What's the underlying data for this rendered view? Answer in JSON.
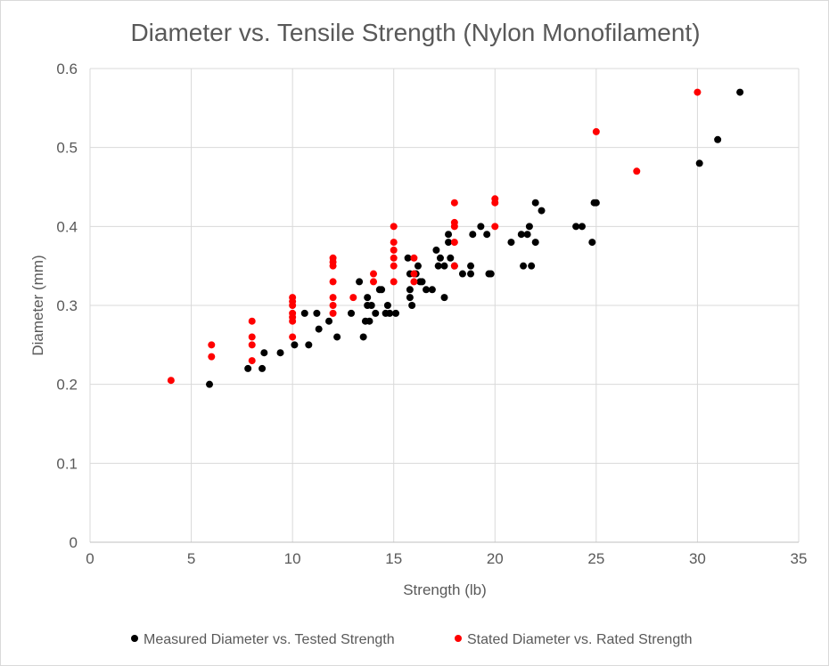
{
  "chart_data": {
    "type": "scatter",
    "title": "Diameter vs. Tensile Strength (Nylon Monofilament)",
    "xlabel": "Strength (lb)",
    "ylabel": "Diameter (mm)",
    "xlim": [
      0,
      35
    ],
    "ylim": [
      0,
      0.6
    ],
    "x_ticks": [
      "0",
      "5",
      "10",
      "15",
      "20",
      "25",
      "30",
      "35"
    ],
    "y_ticks": [
      "0",
      "0.1",
      "0.2",
      "0.3",
      "0.4",
      "0.5",
      "0.6"
    ],
    "grid": true,
    "legend_position": "bottom",
    "series": [
      {
        "name": "Measured Diameter vs. Tested Strength",
        "color": "#000000",
        "points": [
          [
            5.9,
            0.2
          ],
          [
            7.8,
            0.22
          ],
          [
            8.5,
            0.22
          ],
          [
            8.6,
            0.24
          ],
          [
            9.4,
            0.24
          ],
          [
            10.1,
            0.25
          ],
          [
            10.6,
            0.29
          ],
          [
            10.8,
            0.25
          ],
          [
            11.2,
            0.29
          ],
          [
            11.3,
            0.27
          ],
          [
            11.8,
            0.28
          ],
          [
            12.2,
            0.26
          ],
          [
            12.9,
            0.29
          ],
          [
            13.3,
            0.33
          ],
          [
            13.5,
            0.26
          ],
          [
            13.6,
            0.28
          ],
          [
            13.7,
            0.3
          ],
          [
            13.7,
            0.31
          ],
          [
            13.8,
            0.28
          ],
          [
            13.9,
            0.3
          ],
          [
            14.1,
            0.29
          ],
          [
            14.3,
            0.32
          ],
          [
            14.4,
            0.32
          ],
          [
            14.6,
            0.29
          ],
          [
            14.7,
            0.3
          ],
          [
            14.8,
            0.29
          ],
          [
            15.1,
            0.29
          ],
          [
            15.7,
            0.36
          ],
          [
            15.8,
            0.31
          ],
          [
            15.8,
            0.32
          ],
          [
            15.8,
            0.34
          ],
          [
            15.9,
            0.3
          ],
          [
            16.1,
            0.34
          ],
          [
            16.2,
            0.35
          ],
          [
            16.3,
            0.33
          ],
          [
            16.4,
            0.33
          ],
          [
            16.6,
            0.32
          ],
          [
            16.9,
            0.32
          ],
          [
            17.1,
            0.37
          ],
          [
            17.2,
            0.35
          ],
          [
            17.3,
            0.36
          ],
          [
            17.5,
            0.35
          ],
          [
            17.5,
            0.31
          ],
          [
            17.7,
            0.39
          ],
          [
            17.7,
            0.38
          ],
          [
            17.8,
            0.36
          ],
          [
            18.0,
            0.35
          ],
          [
            18.4,
            0.34
          ],
          [
            18.8,
            0.35
          ],
          [
            18.8,
            0.34
          ],
          [
            18.9,
            0.39
          ],
          [
            19.3,
            0.4
          ],
          [
            19.6,
            0.39
          ],
          [
            19.7,
            0.34
          ],
          [
            19.8,
            0.34
          ],
          [
            20.8,
            0.38
          ],
          [
            21.3,
            0.39
          ],
          [
            21.4,
            0.35
          ],
          [
            21.6,
            0.39
          ],
          [
            21.7,
            0.4
          ],
          [
            21.8,
            0.35
          ],
          [
            22.0,
            0.38
          ],
          [
            22.0,
            0.43
          ],
          [
            22.3,
            0.42
          ],
          [
            24.0,
            0.4
          ],
          [
            24.3,
            0.4
          ],
          [
            24.8,
            0.38
          ],
          [
            24.9,
            0.43
          ],
          [
            25.0,
            0.43
          ],
          [
            30.1,
            0.48
          ],
          [
            31.0,
            0.51
          ],
          [
            32.1,
            0.57
          ]
        ]
      },
      {
        "name": "Stated Diameter vs. Rated Strength",
        "color": "#ff0000",
        "points": [
          [
            4,
            0.205
          ],
          [
            6,
            0.235
          ],
          [
            6,
            0.25
          ],
          [
            8,
            0.23
          ],
          [
            8,
            0.25
          ],
          [
            8,
            0.26
          ],
          [
            8,
            0.28
          ],
          [
            10,
            0.26
          ],
          [
            10,
            0.28
          ],
          [
            10,
            0.285
          ],
          [
            10,
            0.29
          ],
          [
            10,
            0.3
          ],
          [
            10,
            0.305
          ],
          [
            10,
            0.31
          ],
          [
            12,
            0.29
          ],
          [
            12,
            0.3
          ],
          [
            12,
            0.31
          ],
          [
            12,
            0.33
          ],
          [
            12,
            0.35
          ],
          [
            12,
            0.355
          ],
          [
            12,
            0.36
          ],
          [
            13,
            0.31
          ],
          [
            14,
            0.33
          ],
          [
            14,
            0.34
          ],
          [
            15,
            0.33
          ],
          [
            15,
            0.35
          ],
          [
            15,
            0.36
          ],
          [
            15,
            0.37
          ],
          [
            15,
            0.38
          ],
          [
            15,
            0.4
          ],
          [
            16,
            0.33
          ],
          [
            16,
            0.34
          ],
          [
            16,
            0.36
          ],
          [
            18,
            0.35
          ],
          [
            18,
            0.38
          ],
          [
            18,
            0.4
          ],
          [
            18,
            0.405
          ],
          [
            18,
            0.43
          ],
          [
            20,
            0.4
          ],
          [
            20,
            0.43
          ],
          [
            20,
            0.435
          ],
          [
            25,
            0.52
          ],
          [
            27,
            0.47
          ],
          [
            30,
            0.57
          ]
        ]
      }
    ]
  }
}
